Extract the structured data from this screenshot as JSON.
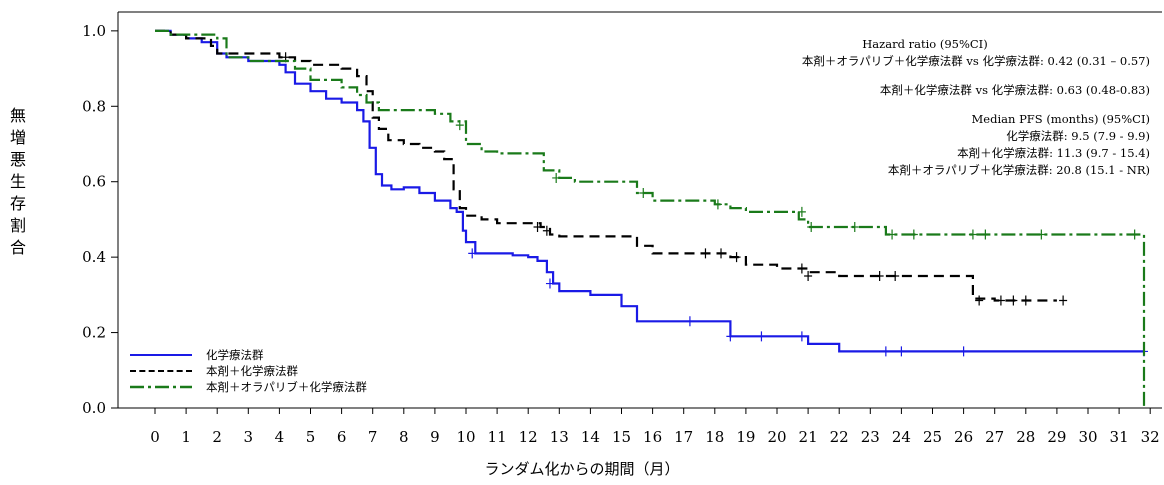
{
  "chart_data": {
    "type": "line",
    "ylabel": "無増悪生存割合",
    "xlabel": "ランダム化からの期間（月）",
    "xlim": [
      -0.5,
      32.5
    ],
    "ylim": [
      0.0,
      1.05
    ],
    "xticks": [
      0,
      1,
      2,
      3,
      4,
      5,
      6,
      7,
      8,
      9,
      10,
      11,
      12,
      13,
      14,
      15,
      16,
      17,
      18,
      19,
      20,
      21,
      22,
      23,
      24,
      25,
      26,
      27,
      28,
      29,
      30,
      31,
      32
    ],
    "yticks": [
      0.0,
      0.2,
      0.4,
      0.6,
      0.8,
      1.0
    ],
    "yticklabels": [
      "0.0",
      "0.2",
      "0.4",
      "0.6",
      "0.8",
      "1.0"
    ],
    "grid": false,
    "legend_position": "bottom-left",
    "annotations": {
      "hazard_title": "Hazard ratio (95%CI)",
      "hazard_line1": "本剤＋オラパリブ＋化学療法群 vs 化学療法群: 0.42 (0.31 – 0.57)",
      "hazard_line2": "本剤＋化学療法群 vs 化学療法群: 0.63 (0.48-0.83)",
      "median_title": "Median PFS (months) (95%CI)",
      "median_line1": "化学療法群: 9.5 (7.9 - 9.9)",
      "median_line2": "本剤＋化学療法群: 11.3 (9.7 - 15.4)",
      "median_line3": "本剤＋オラパリブ＋化学療法群: 20.8 (15.1 - NR)"
    },
    "series": [
      {
        "name": "化学療法群",
        "color": "#1a1ae6",
        "dash": "solid",
        "x": [
          0,
          0.5,
          1.0,
          1.5,
          2.0,
          2.3,
          3.0,
          3.5,
          4.0,
          4.2,
          4.5,
          5.0,
          5.5,
          6.0,
          6.5,
          6.7,
          6.9,
          7.1,
          7.3,
          7.6,
          8.0,
          8.5,
          9.0,
          9.5,
          9.7,
          9.9,
          10.0,
          10.3,
          10.8,
          11.0,
          11.5,
          12.0,
          12.3,
          12.6,
          12.8,
          13.0,
          14.0,
          15.0,
          15.5,
          16.0,
          17.0,
          18.0,
          18.5,
          20.0,
          21.0,
          22.0,
          25.0,
          31.8
        ],
        "y": [
          1.0,
          0.99,
          0.98,
          0.97,
          0.94,
          0.93,
          0.92,
          0.92,
          0.91,
          0.89,
          0.86,
          0.84,
          0.82,
          0.81,
          0.79,
          0.76,
          0.69,
          0.62,
          0.59,
          0.58,
          0.585,
          0.57,
          0.55,
          0.53,
          0.52,
          0.47,
          0.44,
          0.41,
          0.41,
          0.41,
          0.405,
          0.4,
          0.39,
          0.36,
          0.33,
          0.31,
          0.3,
          0.27,
          0.23,
          0.23,
          0.23,
          0.23,
          0.19,
          0.19,
          0.17,
          0.15,
          0.15,
          0.15
        ],
        "censors": [
          [
            10.2,
            0.41
          ],
          [
            12.7,
            0.33
          ],
          [
            17.2,
            0.23
          ],
          [
            18.5,
            0.19
          ],
          [
            19.5,
            0.19
          ],
          [
            20.8,
            0.19
          ],
          [
            23.5,
            0.15
          ],
          [
            24.0,
            0.15
          ],
          [
            26.0,
            0.15
          ],
          [
            31.8,
            0.15
          ]
        ]
      },
      {
        "name": "本剤＋化学療法群",
        "color": "#000000",
        "dash": "dashed",
        "x": [
          0,
          0.5,
          1.0,
          1.8,
          2.0,
          3.0,
          4.0,
          4.5,
          5.0,
          5.5,
          6.0,
          6.5,
          6.8,
          7.0,
          7.2,
          7.5,
          8.0,
          8.5,
          9.0,
          9.3,
          9.6,
          9.8,
          10.0,
          10.5,
          11.0,
          12.0,
          12.4,
          12.7,
          13.0,
          14.0,
          15.0,
          15.5,
          16.0,
          17.0,
          18.0,
          18.5,
          19.0,
          20.0,
          21.0,
          22.0,
          23.0,
          26.0,
          26.3,
          27.0,
          29.0
        ],
        "y": [
          1.0,
          0.99,
          0.98,
          0.96,
          0.94,
          0.94,
          0.93,
          0.92,
          0.91,
          0.91,
          0.9,
          0.88,
          0.84,
          0.77,
          0.74,
          0.71,
          0.7,
          0.69,
          0.68,
          0.66,
          0.58,
          0.53,
          0.51,
          0.5,
          0.49,
          0.49,
          0.48,
          0.46,
          0.455,
          0.455,
          0.455,
          0.43,
          0.41,
          0.41,
          0.41,
          0.4,
          0.38,
          0.37,
          0.36,
          0.35,
          0.35,
          0.35,
          0.29,
          0.285,
          0.285
        ],
        "censors": [
          [
            4.2,
            0.93
          ],
          [
            12.3,
            0.48
          ],
          [
            12.6,
            0.47
          ],
          [
            17.7,
            0.41
          ],
          [
            18.2,
            0.41
          ],
          [
            18.7,
            0.4
          ],
          [
            20.8,
            0.37
          ],
          [
            21.0,
            0.35
          ],
          [
            23.3,
            0.35
          ],
          [
            23.8,
            0.35
          ],
          [
            26.5,
            0.285
          ],
          [
            27.2,
            0.285
          ],
          [
            27.6,
            0.285
          ],
          [
            28.0,
            0.285
          ],
          [
            29.2,
            0.285
          ]
        ]
      },
      {
        "name": "本剤＋オラパリブ＋化学療法群",
        "color": "#1a7a1a",
        "dash": "dashdot",
        "x": [
          0,
          0.5,
          1.0,
          2.0,
          2.3,
          3.0,
          4.0,
          4.5,
          5.0,
          6.0,
          6.5,
          6.8,
          7.2,
          7.5,
          8.0,
          9.0,
          9.5,
          10.0,
          10.5,
          11.0,
          12.0,
          12.5,
          13.0,
          13.5,
          14.0,
          15.0,
          15.5,
          16.0,
          17.0,
          18.0,
          18.5,
          19.0,
          20.0,
          20.7,
          21.0,
          22.0,
          23.0,
          23.5,
          24.0,
          26.0,
          28.0,
          31.8,
          31.8
        ],
        "y": [
          1.0,
          0.99,
          0.99,
          0.98,
          0.93,
          0.92,
          0.92,
          0.9,
          0.87,
          0.85,
          0.83,
          0.81,
          0.79,
          0.79,
          0.79,
          0.78,
          0.76,
          0.7,
          0.68,
          0.675,
          0.675,
          0.63,
          0.61,
          0.6,
          0.6,
          0.6,
          0.57,
          0.55,
          0.55,
          0.54,
          0.53,
          0.52,
          0.52,
          0.5,
          0.48,
          0.48,
          0.48,
          0.46,
          0.46,
          0.46,
          0.46,
          0.46,
          0.0
        ],
        "censors": [
          [
            9.8,
            0.75
          ],
          [
            12.9,
            0.61
          ],
          [
            15.7,
            0.57
          ],
          [
            18.1,
            0.54
          ],
          [
            20.8,
            0.52
          ],
          [
            21.1,
            0.48
          ],
          [
            22.5,
            0.48
          ],
          [
            23.7,
            0.46
          ],
          [
            24.4,
            0.46
          ],
          [
            26.3,
            0.46
          ],
          [
            26.7,
            0.46
          ],
          [
            28.5,
            0.46
          ],
          [
            31.5,
            0.46
          ]
        ]
      }
    ]
  }
}
